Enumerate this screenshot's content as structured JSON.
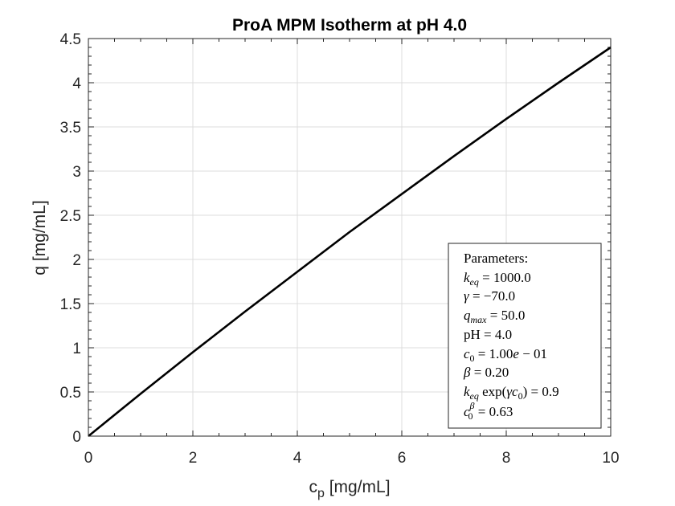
{
  "chart_data": {
    "type": "line",
    "title": "ProA MPM Isotherm at pH 4.0",
    "xlabel": {
      "base": "c",
      "sub": "p",
      "unit": " [mg/mL]"
    },
    "ylabel": "q [mg/mL]",
    "xlim": [
      0,
      10
    ],
    "ylim": [
      0,
      4.5
    ],
    "xticks": [
      "0",
      "2",
      "4",
      "6",
      "8",
      "10"
    ],
    "yticks": [
      "0",
      "0.5",
      "1",
      "1.5",
      "2",
      "2.5",
      "3",
      "3.5",
      "4",
      "4.5"
    ],
    "grid": true,
    "series": [
      {
        "color": "#000000",
        "x": [
          0,
          1,
          2,
          3,
          4,
          5,
          6,
          7,
          8,
          9,
          10
        ],
        "y": [
          0,
          0.48,
          0.95,
          1.41,
          1.86,
          2.31,
          2.74,
          3.17,
          3.59,
          4.0,
          4.4
        ]
      }
    ],
    "annotation": {
      "placement": "bottom-right",
      "lines": [
        "Parameters:",
        "k_eq = 1000.0",
        "γ = −70.0",
        "q_max = 50.0",
        "pH = 4.0",
        "c_0 = 1.00e − 01",
        "β = 0.20",
        "k_eq exp(γc_0) = 0.9",
        "c_0^β = 0.63"
      ]
    }
  }
}
